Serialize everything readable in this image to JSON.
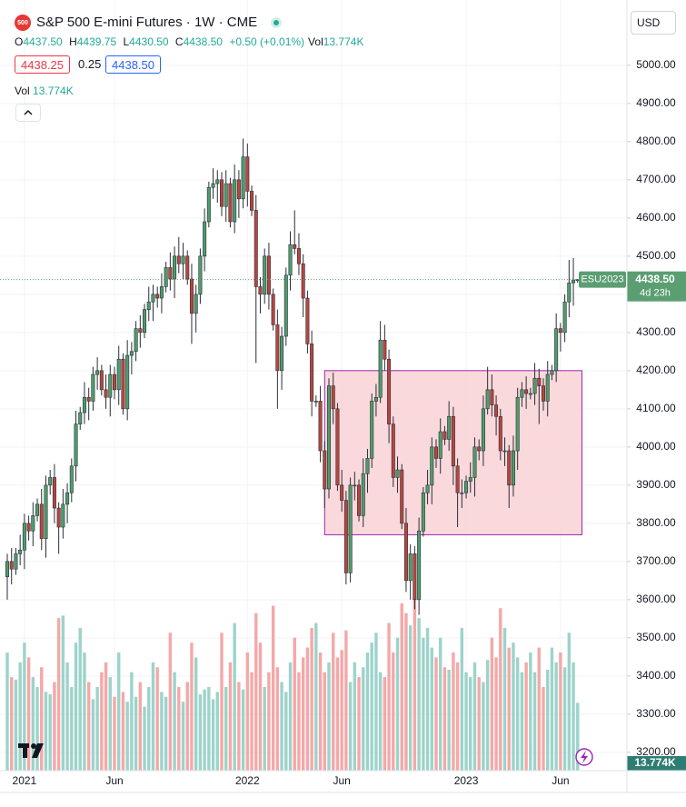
{
  "header": {
    "icon": "500",
    "ohlc": [
      {
        "key": "O",
        "value": "4437.50"
      },
      {
        "key": "H",
        "value": "4439.75"
      },
      {
        "key": "L",
        "value": "4430.50"
      },
      {
        "key": "C",
        "value": "4438.50"
      }
    ],
    "change": "+0.50 (+0.01%)",
    "vol_key": "Vol",
    "vol_value": "13.774K",
    "bid": "4438.25",
    "spread": "0.25",
    "ask": "4438.50",
    "volume_legend": {
      "name": "Vol",
      "value": "13.774K"
    },
    "currency": "USD",
    "volume_tag": "13.774K"
  },
  "chart_data": {
    "type": "candlestick",
    "title": "S&P 500 E-mini Futures · 1W · CME",
    "categories": [
      null,
      null,
      null,
      null,
      "2021",
      null,
      null,
      null,
      null,
      null,
      null,
      null,
      null,
      null,
      null,
      null,
      null,
      null,
      null,
      null,
      null,
      null,
      null,
      null,
      null,
      "Jun",
      null,
      null,
      null,
      null,
      null,
      null,
      null,
      null,
      null,
      null,
      null,
      null,
      null,
      null,
      null,
      null,
      null,
      null,
      null,
      null,
      null,
      null,
      null,
      null,
      null,
      null,
      null,
      null,
      null,
      null,
      "2022",
      null,
      null,
      null,
      null,
      null,
      null,
      null,
      null,
      null,
      null,
      null,
      null,
      null,
      null,
      null,
      null,
      null,
      null,
      null,
      null,
      null,
      "Jun",
      null,
      null,
      null,
      null,
      null,
      null,
      null,
      null,
      null,
      null,
      null,
      null,
      null,
      null,
      null,
      null,
      null,
      null,
      null,
      null,
      null,
      null,
      null,
      null,
      null,
      null,
      null,
      null,
      "2023",
      null,
      null,
      null,
      null,
      null,
      null,
      null,
      null,
      null,
      null,
      null,
      null,
      null,
      null,
      null,
      null,
      null,
      null,
      null,
      null,
      null,
      "Jun",
      null,
      null,
      null,
      null
    ],
    "open": [
      3660,
      3700,
      3680,
      3720,
      3730,
      3800,
      3780,
      3820,
      3850,
      3760,
      3900,
      3920,
      3840,
      3790,
      3850,
      3880,
      3950,
      4060,
      4090,
      4130,
      4120,
      4190,
      4200,
      4150,
      4130,
      4190,
      4150,
      4230,
      4100,
      4240,
      4250,
      4310,
      4300,
      4360,
      4380,
      4400,
      4390,
      4420,
      4470,
      4440,
      4500,
      4480,
      4500,
      4440,
      4350,
      4400,
      4500,
      4590,
      4680,
      4690,
      4700,
      4630,
      4690,
      4590,
      4700,
      4650,
      4760,
      4670,
      4620,
      4420,
      4400,
      4500,
      4400,
      4320,
      4200,
      4290,
      4450,
      4530,
      4520,
      4480,
      4390,
      4270,
      4120,
      4120,
      3990,
      3890,
      4160,
      4100,
      3900,
      3860,
      3670,
      3900,
      3900,
      3820,
      3930,
      3970,
      4120,
      4130,
      4280,
      4230,
      4060,
      3920,
      3940,
      3800,
      3650,
      3720,
      3600,
      3780,
      3880,
      3900,
      4000,
      3970,
      4040,
      4020,
      4080,
      3950,
      3880,
      3880,
      3910,
      3920,
      4000,
      3990,
      4100,
      4150,
      4110,
      4080,
      3990,
      3990,
      3900,
      3990,
      4130,
      4150,
      4140,
      4140,
      4180,
      4160,
      4120,
      4190,
      4200,
      4310,
      4300,
      4380,
      4430,
      4437.5
    ],
    "high": [
      3720,
      3735,
      3735,
      3770,
      3825,
      3820,
      3855,
      3865,
      3890,
      3925,
      3940,
      3955,
      3855,
      3890,
      3905,
      3970,
      4095,
      4105,
      4170,
      4155,
      4210,
      4235,
      4215,
      4190,
      4215,
      4210,
      4265,
      4245,
      4280,
      4275,
      4330,
      4345,
      4375,
      4420,
      4425,
      4420,
      4455,
      4485,
      4510,
      4525,
      4550,
      4535,
      4515,
      4480,
      4425,
      4520,
      4625,
      4695,
      4730,
      4725,
      4720,
      4725,
      4705,
      4740,
      4725,
      4808,
      4795,
      4685,
      4660,
      4445,
      4520,
      4535,
      4415,
      4360,
      4315,
      4470,
      4565,
      4620,
      4560,
      4505,
      4410,
      4305,
      4135,
      4160,
      4015,
      4180,
      4195,
      4115,
      3940,
      3885,
      3920,
      3935,
      3915,
      3970,
      3995,
      4140,
      4165,
      4330,
      4320,
      4255,
      4080,
      3975,
      3955,
      3840,
      3745,
      3740,
      3815,
      3895,
      3940,
      4025,
      4020,
      4075,
      4055,
      4120,
      4105,
      3970,
      3915,
      3925,
      3960,
      4025,
      4020,
      4135,
      4210,
      4190,
      4135,
      4100,
      4025,
      4005,
      4030,
      4155,
      4170,
      4185,
      4155,
      4220,
      4205,
      4180,
      4225,
      4215,
      4350,
      4325,
      4400,
      4490,
      4495,
      4439.75
    ],
    "low": [
      3600,
      3640,
      3665,
      3690,
      3680,
      3755,
      3740,
      3805,
      3730,
      3710,
      3875,
      3800,
      3720,
      3760,
      3800,
      3855,
      3910,
      4045,
      4060,
      4070,
      4095,
      4150,
      4135,
      4100,
      4080,
      4125,
      4110,
      4085,
      4070,
      4190,
      4225,
      4260,
      4285,
      4330,
      4330,
      4365,
      4350,
      4405,
      4410,
      4390,
      4455,
      4440,
      4425,
      4270,
      4300,
      4375,
      4460,
      4575,
      4650,
      4640,
      4605,
      4590,
      4575,
      4560,
      4600,
      4625,
      4630,
      4605,
      4220,
      4350,
      4375,
      4360,
      4305,
      4100,
      4150,
      4265,
      4410,
      4505,
      4450,
      4340,
      4245,
      4080,
      4105,
      3960,
      3840,
      3865,
      4060,
      3885,
      3830,
      3640,
      3645,
      3860,
      3805,
      3790,
      3880,
      3945,
      4080,
      4115,
      4200,
      4010,
      3895,
      3880,
      3785,
      3620,
      3600,
      3575,
      3560,
      3765,
      3850,
      3850,
      3945,
      3930,
      4005,
      3990,
      3900,
      3790,
      3840,
      3865,
      3880,
      3870,
      3965,
      3950,
      4085,
      4080,
      4030,
      3965,
      3950,
      3840,
      3870,
      3940,
      4105,
      4100,
      4125,
      4110,
      4060,
      4095,
      4080,
      4175,
      4170,
      4250,
      4275,
      4340,
      4370,
      4430.5
    ],
    "close": [
      3700,
      3680,
      3720,
      3730,
      3800,
      3780,
      3820,
      3850,
      3760,
      3900,
      3920,
      3840,
      3790,
      3850,
      3880,
      3950,
      4060,
      4090,
      4130,
      4120,
      4190,
      4200,
      4150,
      4130,
      4190,
      4150,
      4230,
      4100,
      4240,
      4250,
      4310,
      4300,
      4360,
      4380,
      4400,
      4390,
      4420,
      4470,
      4440,
      4500,
      4480,
      4500,
      4440,
      4350,
      4400,
      4500,
      4590,
      4680,
      4690,
      4700,
      4630,
      4690,
      4590,
      4700,
      4650,
      4760,
      4670,
      4620,
      4420,
      4400,
      4500,
      4400,
      4320,
      4200,
      4290,
      4450,
      4530,
      4520,
      4480,
      4390,
      4270,
      4120,
      4120,
      3990,
      3890,
      4160,
      4100,
      3900,
      3860,
      3670,
      3900,
      3900,
      3820,
      3930,
      3970,
      4120,
      4130,
      4280,
      4230,
      4060,
      3920,
      3940,
      3800,
      3650,
      3720,
      3600,
      3780,
      3880,
      3900,
      4000,
      3970,
      4040,
      4020,
      4080,
      3950,
      3880,
      3880,
      3910,
      3920,
      4000,
      3990,
      4100,
      4150,
      4110,
      4080,
      3990,
      3990,
      3900,
      3990,
      4130,
      4150,
      4140,
      4140,
      4180,
      4160,
      4120,
      4190,
      4200,
      4310,
      4300,
      4380,
      4430,
      4437.5,
      4438.5
    ],
    "volume": [
      24000,
      19000,
      18500,
      22000,
      26000,
      23000,
      19000,
      17000,
      21000,
      16000,
      15500,
      18000,
      31000,
      31500,
      22000,
      17000,
      26000,
      29000,
      24000,
      18000,
      14500,
      17000,
      20000,
      22000,
      19000,
      15000,
      24000,
      16000,
      14000,
      20000,
      15000,
      18000,
      13000,
      17000,
      22000,
      21000,
      16000,
      15000,
      28000,
      20000,
      17000,
      14000,
      18000,
      26000,
      23000,
      15500,
      16500,
      17000,
      14500,
      16000,
      28000,
      17000,
      22000,
      30000,
      18000,
      16500,
      24000,
      20000,
      32000,
      26000,
      17000,
      20000,
      33500,
      21000,
      18000,
      16000,
      22000,
      27000,
      20000,
      23000,
      25000,
      29000,
      30000,
      24000,
      20000,
      22000,
      28000,
      23000,
      24500,
      28500,
      18000,
      22000,
      19000,
      21000,
      24000,
      26000,
      28000,
      20000,
      19000,
      30000,
      24000,
      27000,
      34000,
      32000,
      29500,
      35000,
      31000,
      27000,
      29000,
      25000,
      23000,
      27000,
      21000,
      20500,
      24000,
      22000,
      29000,
      20000,
      19000,
      22000,
      19000,
      18000,
      22500,
      27000,
      23000,
      33000,
      29000,
      25000,
      26000,
      23000,
      20000,
      22000,
      24000,
      20000,
      25000,
      17000,
      20500,
      25000,
      22000,
      24000,
      21000,
      28000,
      22000,
      13774
    ],
    "up_color": "#4e9d6a",
    "down_color": "#b8463d",
    "wick_color": "#2a2e39",
    "volume_up_color": "#9dd3ca",
    "volume_down_color": "#f4a8a8",
    "ylim": [
      3152,
      5171
    ],
    "yticks": [
      {
        "value": 3200,
        "label": "3200.00"
      },
      {
        "value": 3300,
        "label": "3300.00"
      },
      {
        "value": 3400,
        "label": "3400.00"
      },
      {
        "value": 3500,
        "label": "3500.00"
      },
      {
        "value": 3600,
        "label": "3600.00"
      },
      {
        "value": 3700,
        "label": "3700.00"
      },
      {
        "value": 3800,
        "label": "3800.00"
      },
      {
        "value": 3900,
        "label": "3900.00"
      },
      {
        "value": 4000,
        "label": "4000.00"
      },
      {
        "value": 4100,
        "label": "4100.00"
      },
      {
        "value": 4200,
        "label": "4200.00"
      },
      {
        "value": 4300,
        "label": "4300.00"
      },
      {
        "value": 4400,
        "label": "4400.00"
      },
      {
        "value": 4500,
        "label": "4500.00"
      },
      {
        "value": 4600,
        "label": "4600.00"
      },
      {
        "value": 4700,
        "label": "4700.00"
      },
      {
        "value": 4800,
        "label": "4800.00"
      },
      {
        "value": 4900,
        "label": "4900.00"
      },
      {
        "value": 5000,
        "label": "5000.00"
      }
    ],
    "grid": true,
    "zone": {
      "from": 74,
      "to": 134,
      "high": 4200,
      "low": 3770,
      "fill": "#f9d2d6",
      "stroke": "#9c27b0"
    },
    "last_price": {
      "value": 4438.5,
      "label": "4438.50"
    },
    "symbol": "ESU2023",
    "countdown": "4d 23h",
    "tag_color": "#5b9e72"
  }
}
